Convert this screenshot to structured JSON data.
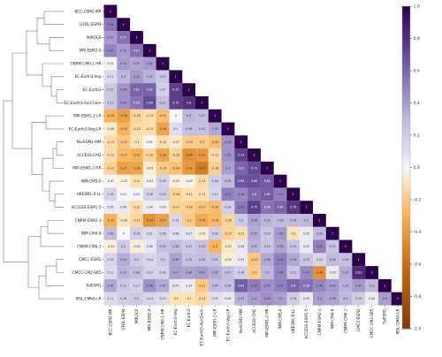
{
  "chart_data": {
    "type": "heatmap",
    "title": "",
    "xlabel": "",
    "ylabel": "",
    "shape": "lower-triangular",
    "models": [
      "BCC-CSM2-MR",
      "GFDL-ESM4",
      "MIROC6",
      "MRI-ESM2-0",
      "CNRM-CM6-1-HR",
      "EC-Earth3-Veg",
      "EC-Earth3",
      "EC-Earth3-AerChem",
      "MPI-ESM1-2-LR",
      "EC-Earth3-Veg-LR",
      "NorESM2-MM",
      "ACCESS-CM2",
      "MPI-ESM1-2-HR",
      "INM-CM5-0",
      "UKESM1-0-LL",
      "ACCESS-ESM1-5",
      "CNRM-ESM2-1",
      "INM-CM4-8",
      "CNRM-CM6-1",
      "CMCC-ESM2",
      "CMCC-CM2-SR5",
      "TaiESM1",
      "IPSL-CM6A-LR"
    ],
    "values": [
      [
        1
      ],
      [
        0.54,
        1
      ],
      [
        0.41,
        0.57,
        1
      ],
      [
        0.49,
        0.41,
        0.57,
        1
      ],
      [
        0.02,
        0.41,
        0.37,
        0.41,
        1
      ],
      [
        0.11,
        0.3,
        0.42,
        0.32,
        0.22,
        1
      ],
      [
        0.21,
        0.44,
        0.61,
        0.62,
        0.17,
        0.75,
        1
      ],
      [
        0.21,
        0.45,
        0.55,
        0.69,
        0.27,
        0.75,
        0.8,
        1
      ],
      [
        -0.29,
        -0.38,
        -0.16,
        -0.12,
        -0.25,
        0,
        0.3,
        0.27,
        1
      ],
      [
        -0.06,
        -0.29,
        -0.13,
        -0.12,
        -0.36,
        0.1,
        0.26,
        0.25,
        0.35,
        1
      ],
      [
        -0.13,
        -0.22,
        -0.1,
        0.01,
        -0.12,
        -0.07,
        -0.19,
        -0.2,
        -0.25,
        0.44,
        1
      ],
      [
        -0.12,
        -0.27,
        -0.31,
        -0.16,
        -0.36,
        -0.16,
        -0.44,
        -0.41,
        -0.12,
        0.45,
        0.74,
        1
      ],
      [
        -0.17,
        -0.37,
        -0.36,
        -0.05,
        -0.19,
        -0.24,
        -0.41,
        -0.53,
        -0.18,
        0.4,
        0.61,
        0.71,
        1
      ],
      [
        -0.01,
        -0.03,
        -0.11,
        -0.02,
        0.16,
        -0.04,
        -0.03,
        -0.13,
        0.18,
        0.29,
        0.66,
        0.69,
        0.64,
        1
      ],
      [
        0.16,
        0.01,
        0.01,
        0.16,
        0.19,
        -0.16,
        -0.11,
        -0.11,
        0.14,
        0.51,
        0.48,
        0.6,
        0.63,
        0.51,
        1
      ],
      [
        0.05,
        0.06,
        -0.12,
        0.04,
        0.03,
        -0.17,
        -0.18,
        -0.23,
        -0.26,
        0.18,
        0.54,
        0.75,
        0.56,
        0.61,
        0.78,
        1
      ],
      [
        -0.31,
        -0.08,
        -0.15,
        -0.43,
        -0.37,
        0.13,
        -0.2,
        -0.34,
        -0.28,
        -0.16,
        0.2,
        0.38,
        0.31,
        0.28,
        0.28,
        0.3,
        1
      ],
      [
        0.28,
        0,
        0.18,
        0.11,
        0.16,
        0.08,
        0.07,
        -0.05,
        0.18,
        -0.17,
        -0.11,
        0.35,
        0.23,
        0.42,
        -0.1,
        0.05,
        0.29,
        1
      ],
      [
        -0.04,
        0.2,
        -0.05,
        0.06,
        0.25,
        0.28,
        0.21,
        0.25,
        -0.3,
        -0.07,
        0.06,
        0.32,
        0.24,
        0.38,
        0.24,
        0.05,
        0.51,
        0.23,
        1
      ],
      [
        0.15,
        0.34,
        0.2,
        0.14,
        0.2,
        0.38,
        0.25,
        0.26,
        0.25,
        -0.05,
        0.05,
        -0.22,
        0.36,
        0.52,
        0.36,
        0.23,
        0.15,
        0.28,
        0.26,
        1
      ],
      [
        0.11,
        0.31,
        0.28,
        0.17,
        0.16,
        0.4,
        0.38,
        0.41,
        0.35,
        0.27,
        0.18,
        -0.2,
        0.3,
        0.49,
        0.23,
        0.47,
        -0.44,
        0.05,
        0.35,
        0.83,
        1
      ],
      [
        0.36,
        0.21,
        0.17,
        0.44,
        0.35,
        0.07,
        0.04,
        -0.21,
        0.28,
        0.26,
        0.63,
        0.52,
        0.45,
        0.51,
        0.6,
        0.56,
        0.49,
        0.42,
        0.33,
        0.42,
        0.3,
        1
      ],
      [
        0.11,
        0.18,
        0.2,
        0.14,
        0.11,
        -0.1,
        -0.1,
        -0.14,
        0.09,
        0.06,
        0.33,
        0.4,
        0.45,
        0.4,
        0.19,
        0.05,
        0.4,
        0.38,
        0.3,
        0.19,
        0.04,
        0.4,
        1
      ]
    ],
    "zlim": [
      -1,
      1
    ],
    "colorbar_ticks": [
      1.0,
      0.8,
      0.6,
      0.4,
      0.2,
      0.0,
      -0.2,
      -0.4,
      -0.6,
      -0.8,
      -1.0
    ],
    "colormap": "PuOr",
    "colors": {
      "high": "#2d004b",
      "mid": "#f7f7f7",
      "low": "#7f3b08"
    },
    "dendrogram": true,
    "dendrogram_side": "left",
    "colorbar_position": "right"
  }
}
